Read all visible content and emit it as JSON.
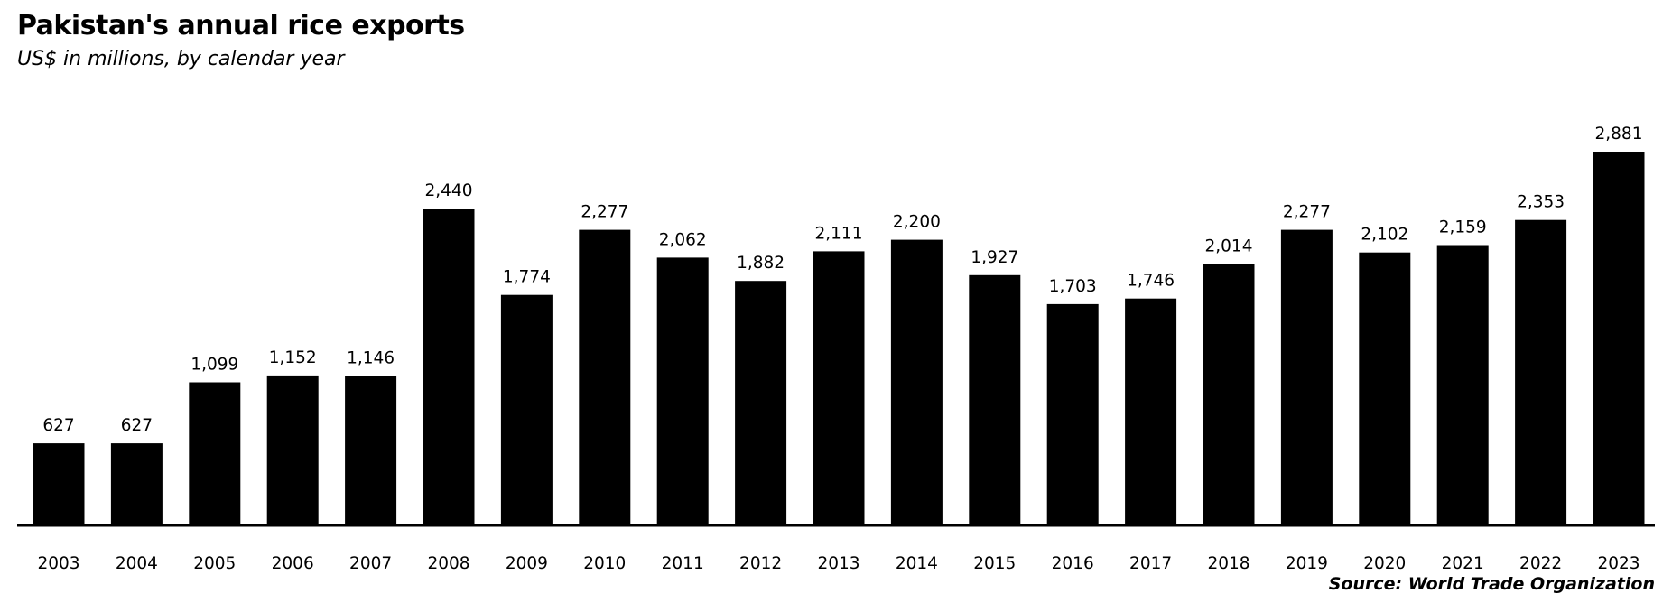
{
  "chart_data": {
    "type": "bar",
    "title": "Pakistan's annual rice exports",
    "subtitle": "US$ in millions, by calendar year",
    "source": "Source: World Trade Organization",
    "categories": [
      "2003",
      "2004",
      "2005",
      "2006",
      "2007",
      "2008",
      "2009",
      "2010",
      "2011",
      "2012",
      "2013",
      "2014",
      "2015",
      "2016",
      "2017",
      "2018",
      "2019",
      "2020",
      "2021",
      "2022",
      "2023"
    ],
    "values": [
      627,
      627,
      1099,
      1152,
      1146,
      2440,
      1774,
      2277,
      2062,
      1882,
      2111,
      2200,
      1927,
      1703,
      1746,
      2014,
      2277,
      2102,
      2159,
      2353,
      2881
    ],
    "data_labels": [
      "627",
      "627",
      "1,099",
      "1,152",
      "1,146",
      "2,440",
      "1,774",
      "2,277",
      "2,062",
      "1,882",
      "2,111",
      "2,200",
      "1,927",
      "1,703",
      "1,746",
      "2,014",
      "2,277",
      "2,102",
      "2,159",
      "2,353",
      "2,881"
    ],
    "xlabel": "",
    "ylabel": "",
    "ylim": [
      0,
      2881
    ],
    "grid": false,
    "legend": "none",
    "colors": {
      "bar": "#000000",
      "background": "#ffffff"
    }
  }
}
